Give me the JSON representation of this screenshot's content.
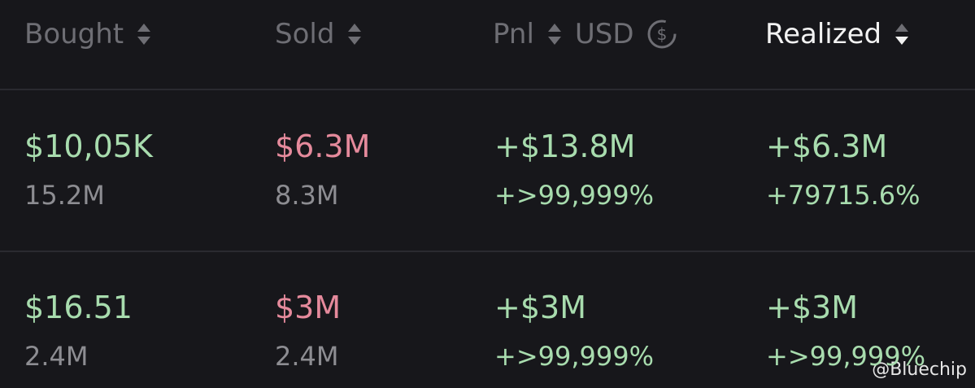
{
  "table": {
    "headers": [
      "Bought",
      "Sold",
      "Pnl",
      "USD",
      "Realized"
    ],
    "rows": [
      [
        {
          "main": "$10,05K",
          "sub": "15.2M"
        },
        {
          "main": "$6.3M",
          "sub": "8.3M"
        },
        {
          "main": "+$13.8M",
          "sub": "+>99,999%"
        },
        {
          "main": "+$6.3M",
          "sub": "+79715.6%"
        }
      ],
      [
        {
          "main": "$16.51",
          "sub": "2.4M"
        },
        {
          "main": "$3M",
          "sub": "2.4M"
        },
        {
          "main": "+$3M",
          "sub": "+>99,999%"
        },
        {
          "main": "+$3M",
          "sub": "+>99,999%"
        }
      ]
    ]
  },
  "watermark": "@Bluechip"
}
